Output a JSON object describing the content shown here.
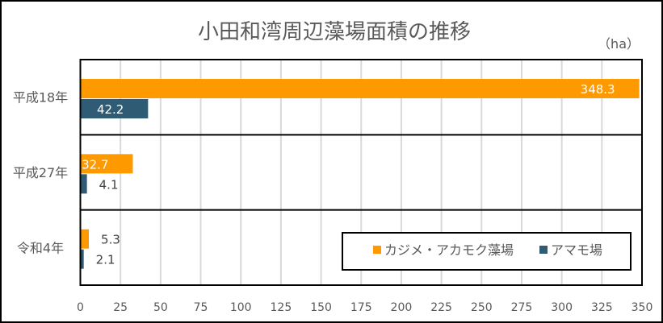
{
  "chart_data": {
    "type": "bar",
    "orientation": "horizontal",
    "title": "小田和湾周辺藻場面積の推移",
    "unit_label": "（ha）",
    "categories": [
      "平成18年",
      "平成27年",
      "令和4年"
    ],
    "series": [
      {
        "name": "カジメ・アカモク藻場",
        "color": "#FF9900",
        "values": [
          348.3,
          32.7,
          5.3
        ]
      },
      {
        "name": "アマモ場",
        "color": "#2F5B75",
        "values": [
          42.2,
          4.1,
          2.1
        ]
      }
    ],
    "xlim": [
      0,
      350
    ],
    "xticks": [
      "0",
      "25",
      "50",
      "75",
      "100",
      "125",
      "150",
      "175",
      "200",
      "225",
      "250",
      "275",
      "300",
      "325",
      "350"
    ],
    "grid": true,
    "legend_position": "bottom-right-inside"
  }
}
